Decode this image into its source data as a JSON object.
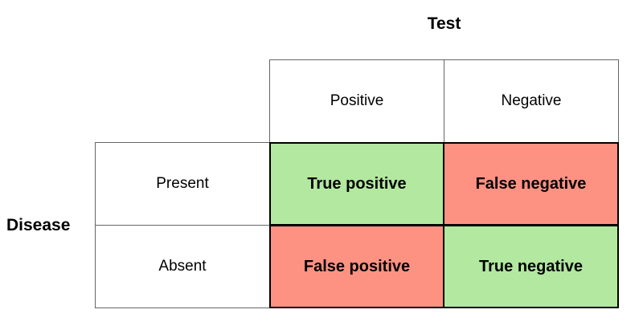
{
  "diagram": {
    "column_axis_label": "Test",
    "row_axis_label": "Disease",
    "columns": [
      "Positive",
      "Negative"
    ],
    "rows": [
      "Present",
      "Absent"
    ],
    "cells": [
      {
        "row": "Present",
        "column": "Positive",
        "label": "True positive",
        "color": "#b2e8a0"
      },
      {
        "row": "Present",
        "column": "Negative",
        "label": "False negative",
        "color": "#fd9283"
      },
      {
        "row": "Absent",
        "column": "Positive",
        "label": "False positive",
        "color": "#fd9283"
      },
      {
        "row": "Absent",
        "column": "Negative",
        "label": "True negative",
        "color": "#b2e8a0"
      }
    ],
    "colors": {
      "correct_cell": "#b2e8a0",
      "incorrect_cell": "#fd9283",
      "header_border": "#666666",
      "cell_border": "#000000",
      "background": "#ffffff",
      "text": "#000000"
    }
  }
}
